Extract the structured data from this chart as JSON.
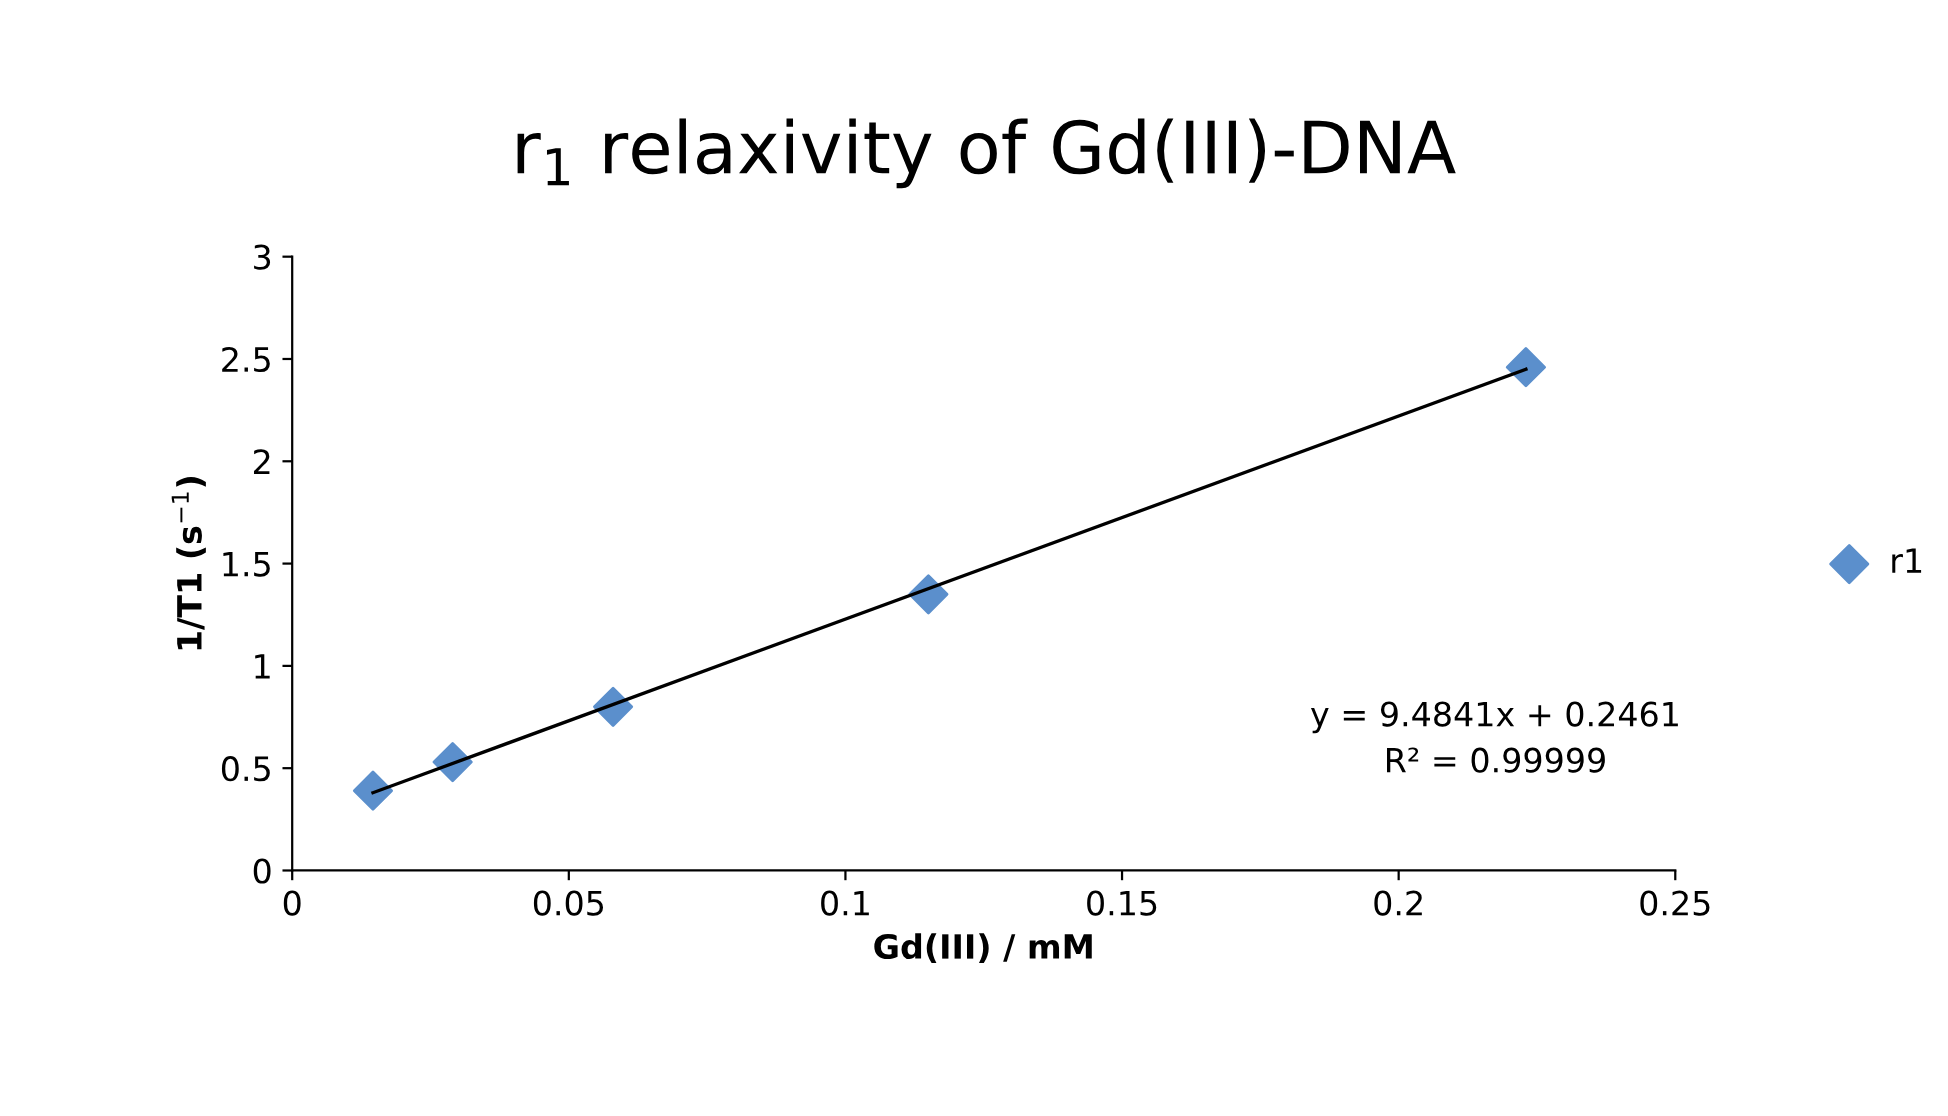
{
  "chart_data": {
    "type": "scatter",
    "title": "r$_{1}$ relaxivity of Gd(III)-DNA",
    "xlabel": "Gd(III) / mM",
    "ylabel": "1/T1 (s$^{−1}$)",
    "xlim": [
      0,
      0.25
    ],
    "xticks": [
      0,
      0.05,
      0.1,
      0.15,
      0.2,
      0.25
    ],
    "ylim": [
      0,
      3
    ],
    "yticks": [
      0,
      0.5,
      1,
      1.5,
      2,
      2.5,
      3
    ],
    "grid": false,
    "legend": "right",
    "annotations": [
      "y = 9.4841x + 0.2461",
      "R² = 0.99999"
    ],
    "series": [
      {
        "name": "r1",
        "color": "#5b8fcc",
        "marker": "diamond",
        "x": [
          0.0146,
          0.029,
          0.058,
          0.115,
          0.223
        ],
        "values": [
          0.39,
          0.53,
          0.8,
          1.35,
          2.46
        ]
      },
      {
        "type": "line",
        "color": "#000000",
        "x": [
          0.0146,
          0.223
        ],
        "values": [
          0.38,
          2.45
        ]
      }
    ]
  }
}
